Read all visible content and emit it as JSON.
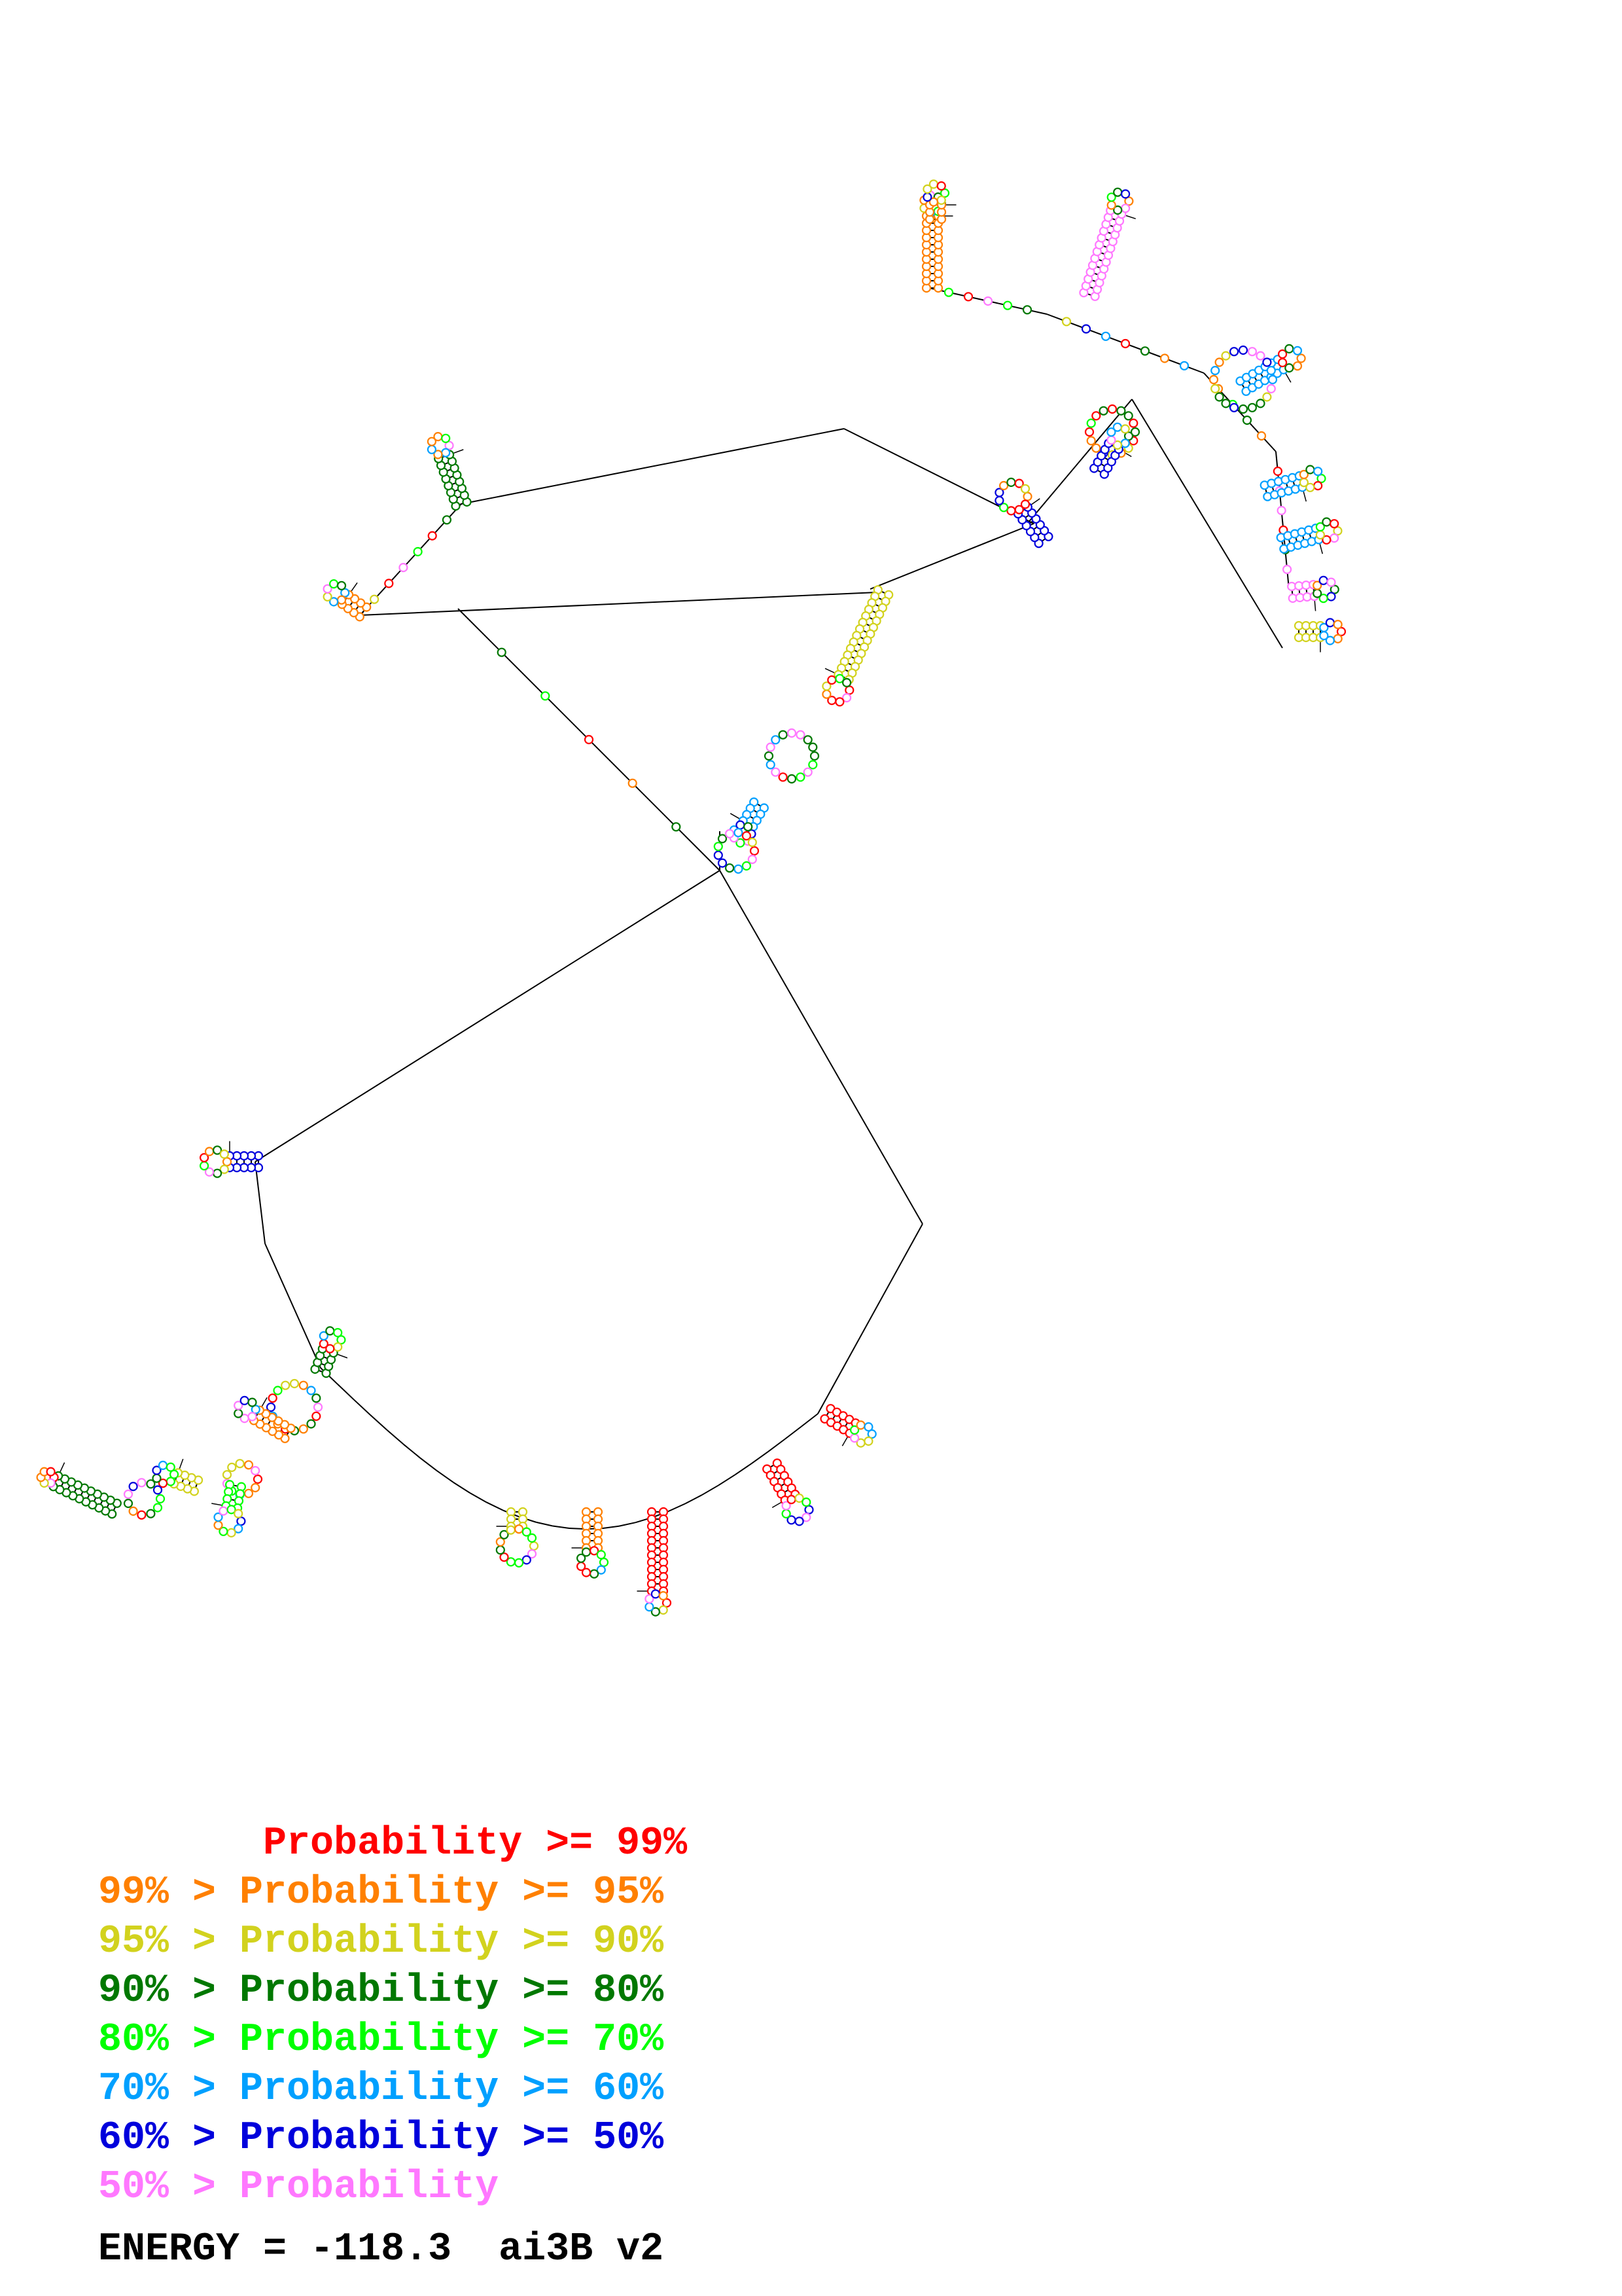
{
  "legend": {
    "rows": [
      {
        "text": "       Probability >= 99%",
        "color": "#ff0000"
      },
      {
        "text": "99% > Probability >= 95%",
        "color": "#ff8000"
      },
      {
        "text": "95% > Probability >= 90%",
        "color": "#d2d21e"
      },
      {
        "text": "90% > Probability >= 80%",
        "color": "#007800"
      },
      {
        "text": "80% > Probability >= 70%",
        "color": "#00ff00"
      },
      {
        "text": "70% > Probability >= 60%",
        "color": "#00a0ff"
      },
      {
        "text": "60% > Probability >= 50%",
        "color": "#0000dc"
      },
      {
        "text": "50% > Probability",
        "color": "#ff78ff"
      }
    ],
    "energy": "ENERGY = -118.3  ai3B v2"
  },
  "colors": {
    "backbone": "#000000",
    "nucleotide_outline": "#808080"
  }
}
